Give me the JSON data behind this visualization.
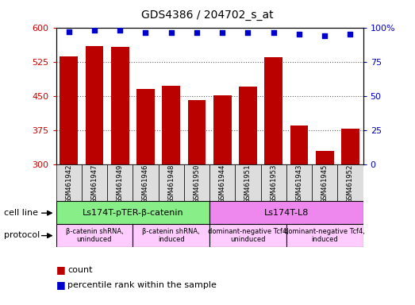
{
  "title": "GDS4386 / 204702_s_at",
  "samples": [
    "GSM461942",
    "GSM461947",
    "GSM461949",
    "GSM461946",
    "GSM461948",
    "GSM461950",
    "GSM461944",
    "GSM461951",
    "GSM461953",
    "GSM461943",
    "GSM461945",
    "GSM461952"
  ],
  "counts": [
    537,
    560,
    557,
    465,
    473,
    442,
    452,
    471,
    535,
    385,
    330,
    378
  ],
  "percentile_ranks": [
    97,
    98,
    98,
    96,
    96,
    96,
    96,
    96,
    96,
    95,
    94,
    95
  ],
  "ylim_left": [
    300,
    600
  ],
  "ylim_right": [
    0,
    100
  ],
  "yticks_left": [
    300,
    375,
    450,
    525,
    600
  ],
  "yticks_right": [
    0,
    25,
    50,
    75,
    100
  ],
  "bar_color": "#bb0000",
  "dot_color": "#0000cc",
  "bar_width": 0.7,
  "cell_line_groups": [
    {
      "label": "Ls174T-pTER-β-catenin",
      "start": 0,
      "end": 6,
      "color": "#88ee88"
    },
    {
      "label": "Ls174T-L8",
      "start": 6,
      "end": 12,
      "color": "#ee88ee"
    }
  ],
  "protocol_groups": [
    {
      "label": "β-catenin shRNA,\nuninduced",
      "start": 0,
      "end": 3,
      "color": "#ffccff"
    },
    {
      "label": "β-catenin shRNA,\ninduced",
      "start": 3,
      "end": 6,
      "color": "#ffccff"
    },
    {
      "label": "dominant-negative Tcf4,\nuninduced",
      "start": 6,
      "end": 9,
      "color": "#ffccff"
    },
    {
      "label": "dominant-negative Tcf4,\ninduced",
      "start": 9,
      "end": 12,
      "color": "#ffccff"
    }
  ],
  "grid_color": "#666666",
  "bg_color": "#ffffff",
  "plot_bg_color": "#ffffff",
  "xticklabel_bg": "#dddddd",
  "left_label_color": "#cc0000",
  "right_label_color": "#0000cc",
  "legend_count_label": "count",
  "legend_percentile_label": "percentile rank within the sample",
  "cell_line_label": "cell line",
  "protocol_label": "protocol"
}
